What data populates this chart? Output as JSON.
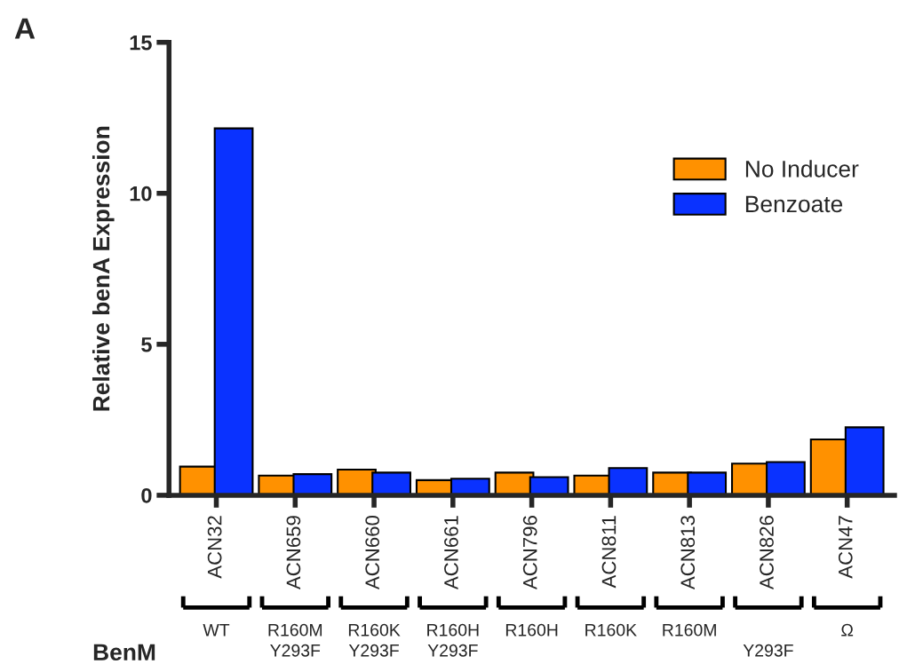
{
  "chart_data": {
    "type": "bar",
    "ylabel": "Relative benA Expression",
    "categories": [
      "ACN32",
      "ACN659",
      "ACN660",
      "ACN661",
      "ACN796",
      "ACN811",
      "ACN813",
      "ACN826",
      "ACN47"
    ],
    "series": [
      {
        "name": "No Inducer",
        "color": "#ff9100",
        "values": [
          0.95,
          0.65,
          0.85,
          0.5,
          0.75,
          0.65,
          0.75,
          1.05,
          1.85
        ]
      },
      {
        "name": "Benzoate",
        "color": "#0a32ff",
        "values": [
          12.15,
          0.7,
          0.75,
          0.55,
          0.6,
          0.9,
          0.75,
          1.1,
          2.25
        ]
      }
    ],
    "ylim": [
      0,
      15
    ],
    "yticks": [
      0,
      5,
      10,
      15
    ],
    "grid": false,
    "legend": "top right",
    "annotations": [
      "A",
      "BenM",
      "WT",
      "R160M\nY293F",
      "R160K\nY293F",
      "R160H\nY293F",
      "R160H",
      "R160K",
      "R160M",
      "\nY293F",
      "Ω"
    ]
  }
}
